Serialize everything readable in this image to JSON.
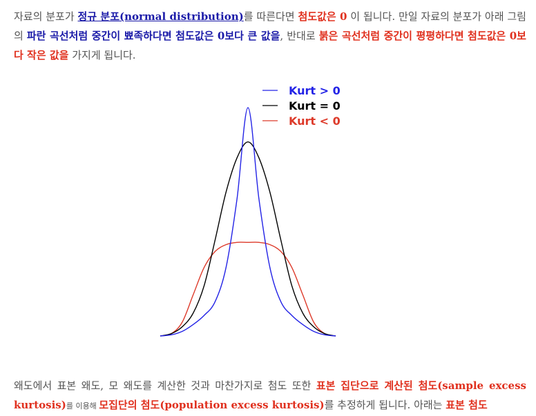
{
  "paragraph1": {
    "t1": "자료의 분포가 ",
    "link_normal": "정규 분포(normal distribution)",
    "t2": "를 따른다면 ",
    "kurt_zero": "첨도값은 0",
    "t3": " 이 됩니다. 만일 자료의 분포가 아래 그림의 ",
    "blue_phrase": "파란 곡선처럼 중간이 뾰족하다면 첨도값은 0보다 큰 값을",
    "t4": ", 반대로 ",
    "red_phrase": "붉은 곡선처럼 중간이 평평하다면 첨도값은 0보다 작은 값을",
    "t5": " 가지게 됩니다."
  },
  "paragraph2": {
    "t1": "왜도에서 표본 왜도, 모 왜도를 계산한 것과 마찬가지로 첨도 또한 ",
    "red1": "표본 집단으로 계산된 첨도(sample excess kurtosis)",
    "small1": "를 이용해 ",
    "red2": "모집단의 첨도(population excess kurtosis)",
    "t2": "를 추정하게 됩니다. 아래는 ",
    "red3": "표본 첨도"
  },
  "chart_data": {
    "type": "line",
    "title": "",
    "xlabel": "",
    "ylabel": "",
    "legend_position": "top",
    "series": [
      {
        "name": "Kurt > 0",
        "color": "#2323e6",
        "x": [
          -4,
          -3.5,
          -3,
          -2.5,
          -2,
          -1.5,
          -1,
          -0.5,
          0,
          0.5,
          1,
          1.5,
          2,
          2.5,
          3,
          3.5,
          4
        ],
        "y": [
          0.0,
          0.005,
          0.02,
          0.05,
          0.09,
          0.15,
          0.3,
          0.6,
          1.0,
          0.6,
          0.3,
          0.15,
          0.09,
          0.05,
          0.02,
          0.005,
          0.0
        ]
      },
      {
        "name": "Kurt = 0",
        "color": "#000000",
        "x": [
          -4,
          -3.5,
          -3,
          -2.5,
          -2,
          -1.5,
          -1,
          -0.5,
          0,
          0.5,
          1,
          1.5,
          2,
          2.5,
          3,
          3.5,
          4
        ],
        "y": [
          0.0,
          0.01,
          0.04,
          0.1,
          0.22,
          0.42,
          0.63,
          0.78,
          0.85,
          0.78,
          0.63,
          0.42,
          0.22,
          0.1,
          0.04,
          0.01,
          0.0
        ]
      },
      {
        "name": "Kurt < 0",
        "color": "#dd3a2a",
        "x": [
          -4,
          -3.5,
          -3,
          -2.5,
          -2,
          -1.5,
          -1,
          -0.5,
          0,
          0.5,
          1,
          1.5,
          2,
          2.5,
          3,
          3.5,
          4
        ],
        "y": [
          0.0,
          0.01,
          0.06,
          0.18,
          0.3,
          0.37,
          0.4,
          0.41,
          0.41,
          0.41,
          0.4,
          0.37,
          0.3,
          0.18,
          0.06,
          0.01,
          0.0
        ]
      }
    ],
    "xlim": [
      -4,
      4
    ],
    "ylim": [
      0,
      1
    ],
    "grid": false
  }
}
